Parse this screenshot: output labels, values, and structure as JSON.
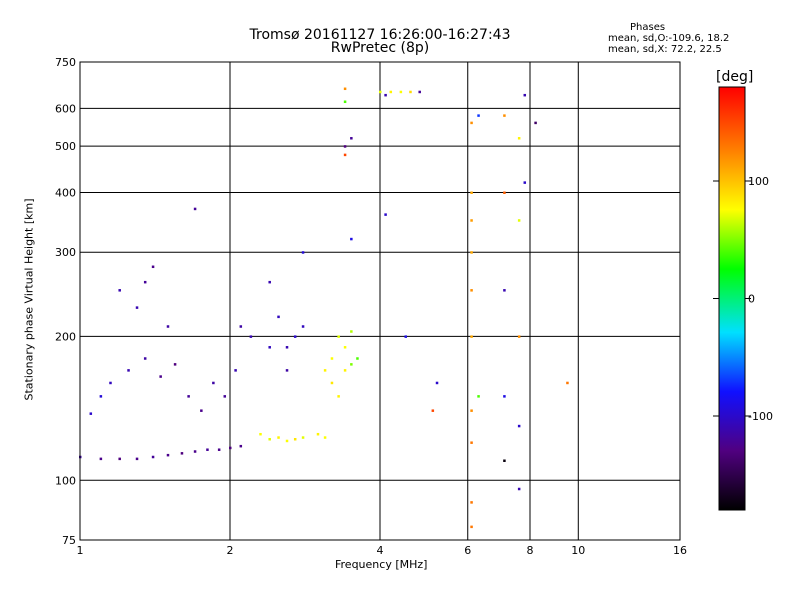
{
  "chart_data": {
    "type": "scatter",
    "title": "Tromsø 20161127 16:26:00-16:27:43",
    "subtitle": "RwPretec (8p)",
    "xlabel": "Frequency [MHz]",
    "ylabel": "Stationary phase Virtual Height [km]",
    "x_scale": "log",
    "y_scale": "log",
    "xlim": [
      1,
      16
    ],
    "ylim": [
      75,
      750
    ],
    "x_ticks": [
      "1",
      "2",
      "4",
      "6",
      "8",
      "10",
      "16"
    ],
    "y_ticks": [
      "75",
      "100",
      "200",
      "300",
      "400",
      "500",
      "600",
      "750"
    ],
    "grid": true,
    "colorbar": {
      "label": "[deg]",
      "range": [
        -180,
        180
      ],
      "ticks": [
        "100",
        "0",
        "-100"
      ],
      "tick_values": [
        100,
        0,
        -100
      ]
    },
    "info": {
      "heading": "Phases",
      "line1": "mean, sd,O:-109.6, 18.2",
      "line2": "mean, sd,X:  72.2, 22.5"
    },
    "points": [
      {
        "x": 1.0,
        "y": 112,
        "phase": -115
      },
      {
        "x": 1.1,
        "y": 111,
        "phase": -125
      },
      {
        "x": 1.2,
        "y": 111,
        "phase": -130
      },
      {
        "x": 1.3,
        "y": 111,
        "phase": -125
      },
      {
        "x": 1.4,
        "y": 112,
        "phase": -120
      },
      {
        "x": 1.5,
        "y": 113,
        "phase": -125
      },
      {
        "x": 1.6,
        "y": 114,
        "phase": -130
      },
      {
        "x": 1.7,
        "y": 115,
        "phase": -125
      },
      {
        "x": 1.8,
        "y": 116,
        "phase": -120
      },
      {
        "x": 1.9,
        "y": 116,
        "phase": -125
      },
      {
        "x": 2.0,
        "y": 117,
        "phase": -130
      },
      {
        "x": 2.1,
        "y": 118,
        "phase": -125
      },
      {
        "x": 1.05,
        "y": 138,
        "phase": -100
      },
      {
        "x": 1.1,
        "y": 150,
        "phase": -95
      },
      {
        "x": 1.15,
        "y": 160,
        "phase": -105
      },
      {
        "x": 1.25,
        "y": 170,
        "phase": -110
      },
      {
        "x": 1.35,
        "y": 180,
        "phase": -115
      },
      {
        "x": 1.45,
        "y": 165,
        "phase": -125
      },
      {
        "x": 1.55,
        "y": 175,
        "phase": -130
      },
      {
        "x": 1.65,
        "y": 150,
        "phase": -120
      },
      {
        "x": 1.75,
        "y": 140,
        "phase": -125
      },
      {
        "x": 1.85,
        "y": 160,
        "phase": -115
      },
      {
        "x": 1.95,
        "y": 150,
        "phase": -120
      },
      {
        "x": 2.05,
        "y": 170,
        "phase": -110
      },
      {
        "x": 1.3,
        "y": 230,
        "phase": -110
      },
      {
        "x": 1.35,
        "y": 260,
        "phase": -120
      },
      {
        "x": 1.4,
        "y": 280,
        "phase": -125
      },
      {
        "x": 1.2,
        "y": 250,
        "phase": -110
      },
      {
        "x": 1.5,
        "y": 210,
        "phase": -115
      },
      {
        "x": 1.7,
        "y": 370,
        "phase": -120
      },
      {
        "x": 2.1,
        "y": 210,
        "phase": -115
      },
      {
        "x": 2.2,
        "y": 200,
        "phase": -110
      },
      {
        "x": 2.4,
        "y": 190,
        "phase": -105
      },
      {
        "x": 2.5,
        "y": 220,
        "phase": -105
      },
      {
        "x": 2.6,
        "y": 190,
        "phase": -110
      },
      {
        "x": 2.7,
        "y": 200,
        "phase": -100
      },
      {
        "x": 2.8,
        "y": 210,
        "phase": -105
      },
      {
        "x": 2.6,
        "y": 170,
        "phase": -115
      },
      {
        "x": 2.4,
        "y": 260,
        "phase": -110
      },
      {
        "x": 2.8,
        "y": 300,
        "phase": -95
      },
      {
        "x": 2.3,
        "y": 125,
        "phase": 75
      },
      {
        "x": 2.4,
        "y": 122,
        "phase": 70
      },
      {
        "x": 2.5,
        "y": 123,
        "phase": 80
      },
      {
        "x": 2.6,
        "y": 121,
        "phase": 75
      },
      {
        "x": 2.7,
        "y": 122,
        "phase": 85
      },
      {
        "x": 2.8,
        "y": 123,
        "phase": 70
      },
      {
        "x": 3.0,
        "y": 125,
        "phase": 80
      },
      {
        "x": 3.1,
        "y": 123,
        "phase": 75
      },
      {
        "x": 3.1,
        "y": 170,
        "phase": 80
      },
      {
        "x": 3.2,
        "y": 180,
        "phase": 75
      },
      {
        "x": 3.2,
        "y": 160,
        "phase": 85
      },
      {
        "x": 3.3,
        "y": 200,
        "phase": 70
      },
      {
        "x": 3.3,
        "y": 150,
        "phase": 80
      },
      {
        "x": 3.4,
        "y": 190,
        "phase": 75
      },
      {
        "x": 3.4,
        "y": 170,
        "phase": 80
      },
      {
        "x": 3.5,
        "y": 175,
        "phase": 50
      },
      {
        "x": 3.6,
        "y": 180,
        "phase": 40
      },
      {
        "x": 3.5,
        "y": 205,
        "phase": 60
      },
      {
        "x": 3.4,
        "y": 500,
        "phase": -130
      },
      {
        "x": 3.5,
        "y": 520,
        "phase": -120
      },
      {
        "x": 3.4,
        "y": 620,
        "phase": 40
      },
      {
        "x": 3.4,
        "y": 660,
        "phase": 120
      },
      {
        "x": 3.4,
        "y": 480,
        "phase": 150
      },
      {
        "x": 3.5,
        "y": 320,
        "phase": -90
      },
      {
        "x": 4.0,
        "y": 650,
        "phase": 70
      },
      {
        "x": 4.2,
        "y": 650,
        "phase": 80
      },
      {
        "x": 4.4,
        "y": 650,
        "phase": 75
      },
      {
        "x": 4.6,
        "y": 650,
        "phase": 90
      },
      {
        "x": 4.1,
        "y": 640,
        "phase": -110
      },
      {
        "x": 4.8,
        "y": 650,
        "phase": -120
      },
      {
        "x": 4.1,
        "y": 360,
        "phase": -100
      },
      {
        "x": 4.5,
        "y": 200,
        "phase": -90
      },
      {
        "x": 5.2,
        "y": 160,
        "phase": -100
      },
      {
        "x": 5.1,
        "y": 140,
        "phase": 150
      },
      {
        "x": 6.1,
        "y": 120,
        "phase": 130
      },
      {
        "x": 6.1,
        "y": 140,
        "phase": 120
      },
      {
        "x": 6.1,
        "y": 200,
        "phase": 110
      },
      {
        "x": 6.1,
        "y": 250,
        "phase": 120
      },
      {
        "x": 6.1,
        "y": 300,
        "phase": 110
      },
      {
        "x": 6.1,
        "y": 350,
        "phase": 115
      },
      {
        "x": 6.1,
        "y": 400,
        "phase": 110
      },
      {
        "x": 6.1,
        "y": 560,
        "phase": 120
      },
      {
        "x": 6.1,
        "y": 90,
        "phase": 130
      },
      {
        "x": 6.1,
        "y": 80,
        "phase": 130
      },
      {
        "x": 6.3,
        "y": 580,
        "phase": -70
      },
      {
        "x": 6.3,
        "y": 150,
        "phase": 40
      },
      {
        "x": 7.1,
        "y": 580,
        "phase": 120
      },
      {
        "x": 7.1,
        "y": 400,
        "phase": 140
      },
      {
        "x": 7.1,
        "y": 250,
        "phase": -110
      },
      {
        "x": 7.1,
        "y": 150,
        "phase": -90
      },
      {
        "x": 7.1,
        "y": 110,
        "phase": -175
      },
      {
        "x": 7.6,
        "y": 520,
        "phase": 80
      },
      {
        "x": 7.6,
        "y": 350,
        "phase": 70
      },
      {
        "x": 7.6,
        "y": 200,
        "phase": 120
      },
      {
        "x": 7.6,
        "y": 130,
        "phase": -100
      },
      {
        "x": 7.6,
        "y": 96,
        "phase": -110
      },
      {
        "x": 7.8,
        "y": 420,
        "phase": -100
      },
      {
        "x": 7.8,
        "y": 640,
        "phase": -110
      },
      {
        "x": 8.2,
        "y": 560,
        "phase": -140
      },
      {
        "x": 9.5,
        "y": 160,
        "phase": 130
      }
    ]
  }
}
